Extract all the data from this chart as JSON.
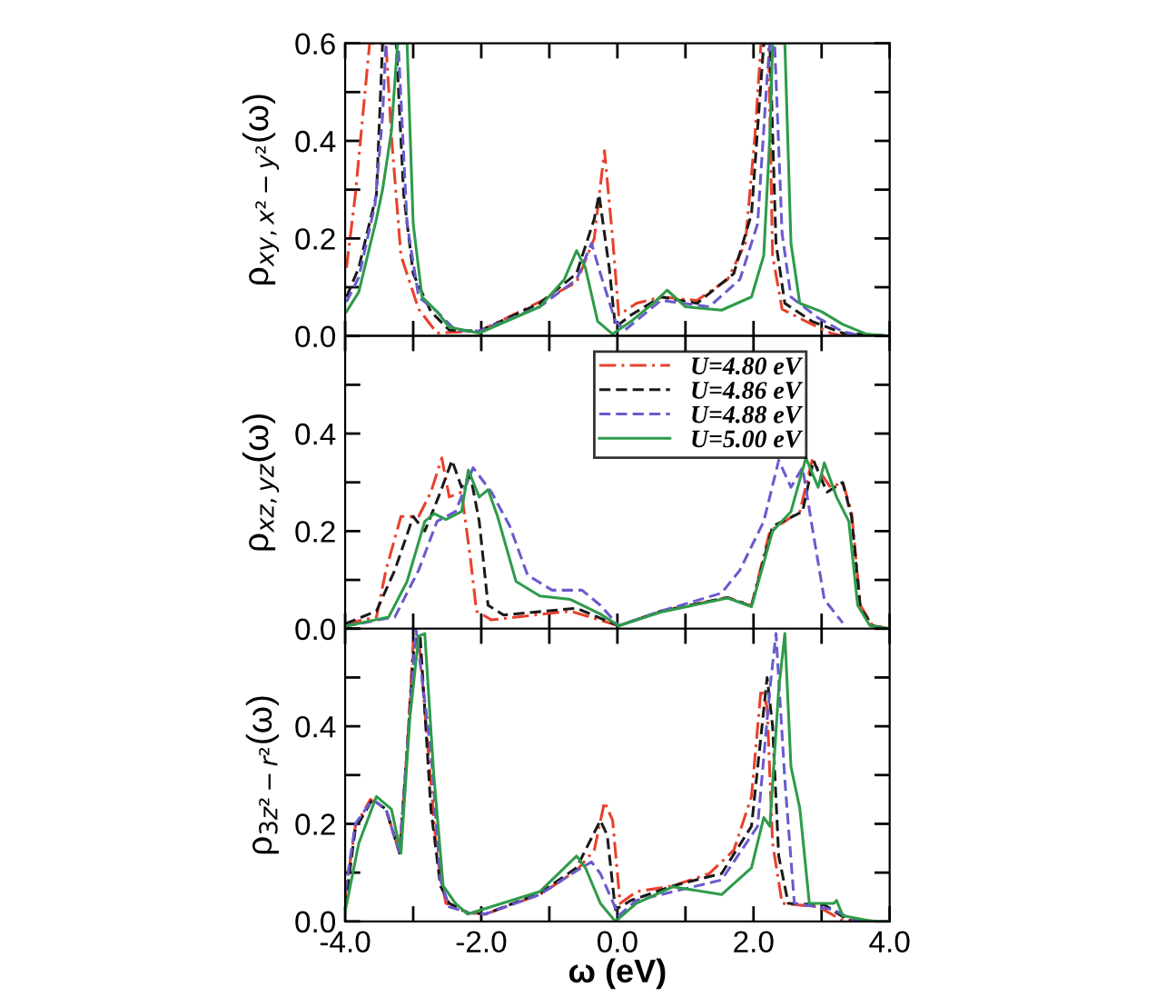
{
  "chart_data": [
    {
      "type": "line",
      "ylabel": "ρ$_{xy,x²−y²}$(ω)",
      "xlim": [
        -4,
        4
      ],
      "ylim": [
        0,
        0.6
      ],
      "xticks": [
        {
          "value": -4,
          "label": null
        },
        {
          "value": -3,
          "label": null
        },
        {
          "value": -2,
          "label": null
        },
        {
          "value": -1,
          "label": null
        },
        {
          "value": 0,
          "label": null
        },
        {
          "value": 1,
          "label": null
        },
        {
          "value": 2,
          "label": null
        },
        {
          "value": 3,
          "label": null
        },
        {
          "value": 4,
          "label": null
        }
      ],
      "yticks": [
        {
          "value": 0,
          "label": "0.0"
        },
        {
          "value": 0.1,
          "label": null
        },
        {
          "value": 0.2,
          "label": "0.2"
        },
        {
          "value": 0.3,
          "label": null
        },
        {
          "value": 0.4,
          "label": "0.4"
        },
        {
          "value": 0.5,
          "label": null
        },
        {
          "value": 0.6,
          "label": "0.6"
        }
      ],
      "tick_labels": "y",
      "grid": false,
      "legend": false,
      "series": [
        {
          "color": "#e8412c",
          "line_style": "dashdot",
          "x": [
            -3.98,
            -3.85,
            -3.64,
            -3.4,
            -3.32,
            -3.18,
            -2.92,
            -2.65,
            -2.03,
            -1.14,
            -0.6,
            -0.34,
            -0.19,
            -0.07,
            0.02,
            0.28,
            0.64,
            1.17,
            1.62,
            1.88,
            2.02,
            2.11,
            2.22,
            2.28,
            2.42,
            2.77,
            3.13,
            3.31,
            4.0
          ],
          "values": [
            0.14,
            0.29,
            0.6,
            0.6,
            0.41,
            0.165,
            0.055,
            0.006,
            0.01,
            0.07,
            0.11,
            0.2,
            0.38,
            0.2,
            0.043,
            0.067,
            0.08,
            0.073,
            0.116,
            0.19,
            0.41,
            0.6,
            0.6,
            0.165,
            0.055,
            0.03,
            0.006,
            0.0,
            0.0
          ]
        },
        {
          "color": "#1a1a1a",
          "line_style": "dashed",
          "x": [
            -3.98,
            -3.8,
            -3.54,
            -3.45,
            -3.25,
            -3.14,
            -3.0,
            -2.74,
            -2.47,
            -2.03,
            -1.14,
            -0.6,
            -0.34,
            -0.27,
            -0.12,
            -0.03,
            0.2,
            0.64,
            1.17,
            1.71,
            1.97,
            2.15,
            2.24,
            2.33,
            2.46,
            2.86,
            3.31,
            4.0
          ],
          "values": [
            0.08,
            0.14,
            0.29,
            0.6,
            0.6,
            0.29,
            0.128,
            0.05,
            0.012,
            0.01,
            0.067,
            0.128,
            0.24,
            0.29,
            0.14,
            0.018,
            0.043,
            0.08,
            0.067,
            0.128,
            0.25,
            0.6,
            0.6,
            0.19,
            0.067,
            0.03,
            0.006,
            0.0
          ]
        },
        {
          "color": "#6a5acd",
          "line_style": "dashed",
          "x": [
            -3.98,
            -3.8,
            -3.56,
            -3.45,
            -3.4,
            -3.22,
            -3.09,
            -2.92,
            -2.65,
            -2.38,
            -2.03,
            -1.14,
            -0.6,
            -0.38,
            -0.25,
            -0.03,
            0.11,
            0.64,
            1.35,
            1.8,
            2.06,
            2.2,
            2.24,
            2.31,
            2.42,
            2.55,
            2.95,
            3.31,
            3.6,
            4.0
          ],
          "values": [
            0.07,
            0.12,
            0.27,
            0.45,
            0.6,
            0.6,
            0.23,
            0.08,
            0.05,
            0.012,
            0.01,
            0.06,
            0.116,
            0.19,
            0.128,
            0.03,
            0.012,
            0.073,
            0.06,
            0.116,
            0.23,
            0.53,
            0.6,
            0.6,
            0.21,
            0.08,
            0.037,
            0.009,
            0.0,
            0.0
          ]
        },
        {
          "color": "#2e9b4a",
          "line_style": "solid",
          "x": [
            -3.98,
            -3.8,
            -3.54,
            -3.45,
            -3.32,
            -3.23,
            -3.09,
            -3.0,
            -2.87,
            -2.65,
            -2.47,
            -2.03,
            -1.14,
            -0.78,
            -0.6,
            -0.47,
            -0.29,
            -0.07,
            0.2,
            0.55,
            0.73,
            1.0,
            1.53,
            1.97,
            2.15,
            2.24,
            2.28,
            2.46,
            2.55,
            2.68,
            3.0,
            3.31,
            3.66,
            4.0
          ],
          "values": [
            0.05,
            0.09,
            0.24,
            0.3,
            0.42,
            0.6,
            0.6,
            0.23,
            0.08,
            0.05,
            0.018,
            0.006,
            0.06,
            0.116,
            0.175,
            0.14,
            0.03,
            0.004,
            0.03,
            0.07,
            0.094,
            0.06,
            0.053,
            0.08,
            0.165,
            0.41,
            0.6,
            0.6,
            0.19,
            0.067,
            0.05,
            0.024,
            0.004,
            0.0
          ]
        }
      ]
    },
    {
      "type": "line",
      "ylabel": "ρ$_{xz,yz}$(ω)",
      "xlim": [
        -4,
        4
      ],
      "ylim": [
        0,
        0.6
      ],
      "xticks": [
        {
          "value": -4,
          "label": null
        },
        {
          "value": -3,
          "label": null
        },
        {
          "value": -2,
          "label": null
        },
        {
          "value": -1,
          "label": null
        },
        {
          "value": 0,
          "label": null
        },
        {
          "value": 1,
          "label": null
        },
        {
          "value": 2,
          "label": null
        },
        {
          "value": 3,
          "label": null
        },
        {
          "value": 4,
          "label": null
        }
      ],
      "yticks": [
        {
          "value": 0,
          "label": "0.0"
        },
        {
          "value": 0.1,
          "label": null
        },
        {
          "value": 0.2,
          "label": "0.2"
        },
        {
          "value": 0.3,
          "label": null
        },
        {
          "value": 0.4,
          "label": "0.4"
        },
        {
          "value": 0.5,
          "label": null
        },
        {
          "value": 0.6,
          "label": null
        }
      ],
      "tick_labels": "y",
      "grid": false,
      "legend": "top right",
      "series": [
        {
          "name": "U=4.80 eV",
          "color": "#e8412c",
          "line_style": "dashdot",
          "x": [
            -4.0,
            -3.54,
            -3.4,
            -3.18,
            -2.92,
            -2.74,
            -2.58,
            -2.47,
            -2.29,
            -2.16,
            -2.07,
            -1.85,
            -0.69,
            0.02,
            0.64,
            1.62,
            1.97,
            2.24,
            2.68,
            2.86,
            3.13,
            3.31,
            3.44,
            3.57,
            3.75,
            4.0
          ],
          "values": [
            0.01,
            0.024,
            0.12,
            0.23,
            0.23,
            0.28,
            0.35,
            0.27,
            0.28,
            0.145,
            0.036,
            0.018,
            0.036,
            0.006,
            0.036,
            0.064,
            0.048,
            0.2,
            0.24,
            0.345,
            0.29,
            0.3,
            0.24,
            0.048,
            0.006,
            0.0
          ]
        },
        {
          "name": "U=4.86 eV",
          "color": "#1a1a1a",
          "line_style": "dashed",
          "x": [
            -4.0,
            -3.54,
            -3.27,
            -3.0,
            -2.83,
            -2.6,
            -2.43,
            -2.29,
            -2.16,
            -2.03,
            -1.9,
            -1.67,
            -0.6,
            0.02,
            0.64,
            1.62,
            1.97,
            2.28,
            2.72,
            2.88,
            3.08,
            3.31,
            3.44,
            3.57,
            3.75,
            4.0
          ],
          "values": [
            0.01,
            0.036,
            0.12,
            0.23,
            0.2,
            0.28,
            0.345,
            0.29,
            0.315,
            0.22,
            0.048,
            0.028,
            0.042,
            0.006,
            0.036,
            0.064,
            0.046,
            0.21,
            0.24,
            0.345,
            0.28,
            0.3,
            0.23,
            0.042,
            0.006,
            0.0
          ]
        },
        {
          "name": "U=4.88 eV",
          "color": "#6a5acd",
          "line_style": "dashed",
          "x": [
            -4.0,
            -3.27,
            -2.92,
            -2.65,
            -2.38,
            -2.12,
            -1.85,
            -1.58,
            -1.32,
            -0.96,
            -0.52,
            -0.25,
            0.02,
            0.64,
            1.53,
            1.8,
            2.15,
            2.37,
            2.55,
            2.72,
            2.86,
            3.04,
            3.31
          ],
          "values": [
            0.005,
            0.024,
            0.12,
            0.22,
            0.24,
            0.33,
            0.28,
            0.21,
            0.11,
            0.079,
            0.079,
            0.048,
            0.006,
            0.036,
            0.073,
            0.12,
            0.22,
            0.345,
            0.29,
            0.33,
            0.21,
            0.06,
            0.012
          ]
        },
        {
          "name": "U=5.00 eV",
          "color": "#2e9b4a",
          "line_style": "solid",
          "x": [
            -4.0,
            -3.36,
            -3.09,
            -2.83,
            -2.69,
            -2.52,
            -2.29,
            -2.19,
            -2.03,
            -1.9,
            -1.76,
            -1.49,
            -1.14,
            -0.69,
            -0.25,
            0.02,
            0.64,
            1.62,
            1.97,
            2.28,
            2.55,
            2.77,
            2.95,
            3.04,
            3.22,
            3.4,
            3.53,
            3.71,
            4.0
          ],
          "values": [
            0.005,
            0.024,
            0.097,
            0.22,
            0.236,
            0.224,
            0.24,
            0.325,
            0.27,
            0.285,
            0.23,
            0.097,
            0.067,
            0.06,
            0.03,
            0.006,
            0.034,
            0.063,
            0.045,
            0.2,
            0.24,
            0.35,
            0.29,
            0.34,
            0.27,
            0.22,
            0.048,
            0.006,
            0.0
          ]
        }
      ]
    },
    {
      "type": "line",
      "ylabel": "ρ$_{3z²−r²}$(ω)",
      "xlabel": "ω (eV)",
      "xlim": [
        -4,
        4
      ],
      "ylim": [
        0,
        0.6
      ],
      "xticks": [
        {
          "value": -4,
          "label": "-4.0"
        },
        {
          "value": -3,
          "label": null
        },
        {
          "value": -2,
          "label": "-2.0"
        },
        {
          "value": -1,
          "label": null
        },
        {
          "value": 0,
          "label": "0.0"
        },
        {
          "value": 1,
          "label": null
        },
        {
          "value": 2,
          "label": "2.0"
        },
        {
          "value": 3,
          "label": null
        },
        {
          "value": 4,
          "label": "4.0"
        }
      ],
      "yticks": [
        {
          "value": 0,
          "label": "0.0"
        },
        {
          "value": 0.1,
          "label": null
        },
        {
          "value": 0.2,
          "label": "0.2"
        },
        {
          "value": 0.3,
          "label": null
        },
        {
          "value": 0.4,
          "label": "0.4"
        },
        {
          "value": 0.5,
          "label": null
        },
        {
          "value": 0.6,
          "label": null
        }
      ],
      "grid": false,
      "legend": false,
      "series": [
        {
          "color": "#e8412c",
          "line_style": "dashdot",
          "x": [
            -4.0,
            -3.85,
            -3.63,
            -3.4,
            -3.2,
            -3.09,
            -3.0,
            -2.92,
            -2.78,
            -2.65,
            -2.52,
            -2.2,
            -1.94,
            -1.14,
            -0.6,
            -0.34,
            -0.19,
            -0.07,
            0.04,
            0.28,
            0.82,
            1.35,
            1.71,
            1.97,
            2.11,
            2.2,
            2.28,
            2.42,
            2.95,
            3.31,
            4.0
          ],
          "values": [
            0.05,
            0.195,
            0.25,
            0.23,
            0.14,
            0.35,
            0.57,
            0.585,
            0.35,
            0.134,
            0.037,
            0.018,
            0.015,
            0.055,
            0.104,
            0.146,
            0.245,
            0.207,
            0.037,
            0.061,
            0.073,
            0.098,
            0.146,
            0.256,
            0.476,
            0.44,
            0.16,
            0.037,
            0.03,
            0.002,
            0.0
          ]
        },
        {
          "color": "#1a1a1a",
          "line_style": "dashed",
          "x": [
            -4.0,
            -3.85,
            -3.6,
            -3.4,
            -3.2,
            -3.09,
            -2.99,
            -2.9,
            -2.74,
            -2.6,
            -2.47,
            -2.2,
            -1.94,
            -1.14,
            -0.6,
            -0.25,
            -0.15,
            -0.03,
            0.2,
            0.82,
            1.53,
            1.97,
            2.2,
            2.28,
            2.37,
            2.51,
            3.04,
            3.4,
            4.0
          ],
          "values": [
            0.03,
            0.19,
            0.25,
            0.23,
            0.14,
            0.35,
            0.56,
            0.59,
            0.23,
            0.073,
            0.037,
            0.018,
            0.015,
            0.058,
            0.11,
            0.207,
            0.177,
            0.024,
            0.043,
            0.073,
            0.098,
            0.195,
            0.5,
            0.4,
            0.134,
            0.037,
            0.034,
            0.002,
            0.0
          ]
        },
        {
          "color": "#6a5acd",
          "line_style": "dashed",
          "x": [
            -4.0,
            -3.85,
            -3.6,
            -3.4,
            -3.2,
            -3.09,
            -2.96,
            -2.74,
            -2.6,
            -2.47,
            -2.2,
            -1.94,
            -1.14,
            -0.6,
            -0.38,
            -0.25,
            0.02,
            0.28,
            0.82,
            1.53,
            2.06,
            2.24,
            2.33,
            2.46,
            2.6,
            3.18,
            3.48,
            4.0
          ],
          "values": [
            0.06,
            0.2,
            0.25,
            0.23,
            0.14,
            0.35,
            0.6,
            0.35,
            0.085,
            0.03,
            0.018,
            0.015,
            0.055,
            0.104,
            0.122,
            0.098,
            0.012,
            0.043,
            0.061,
            0.085,
            0.195,
            0.476,
            0.59,
            0.29,
            0.037,
            0.024,
            0.001,
            0.0
          ]
        },
        {
          "color": "#2e9b4a",
          "line_style": "solid",
          "x": [
            -4.0,
            -3.8,
            -3.54,
            -3.32,
            -3.18,
            -3.05,
            -2.92,
            -2.83,
            -2.7,
            -2.56,
            -2.38,
            -2.2,
            -1.14,
            -0.6,
            -0.47,
            -0.25,
            -0.03,
            0.28,
            0.82,
            1.53,
            1.97,
            2.15,
            2.24,
            2.37,
            2.46,
            2.55,
            2.68,
            2.82,
            3.18,
            3.22,
            3.31,
            3.75,
            4.0
          ],
          "values": [
            0.02,
            0.16,
            0.256,
            0.23,
            0.14,
            0.415,
            0.585,
            0.59,
            0.305,
            0.073,
            0.037,
            0.015,
            0.061,
            0.134,
            0.11,
            0.037,
            0.0,
            0.037,
            0.071,
            0.055,
            0.11,
            0.213,
            0.195,
            0.476,
            0.59,
            0.317,
            0.232,
            0.037,
            0.037,
            0.043,
            0.012,
            0.0,
            0.0
          ]
        }
      ]
    }
  ]
}
